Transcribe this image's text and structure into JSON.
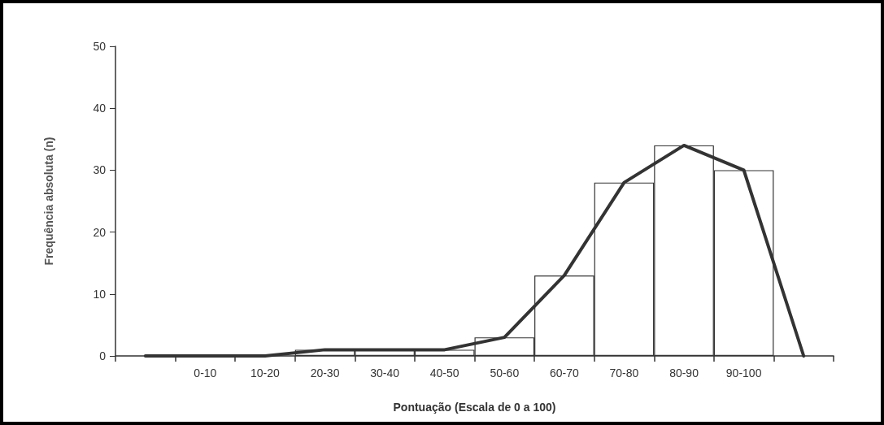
{
  "chart_data": {
    "type": "bar",
    "xlabel": "Pontuação (Escala de 0 a 100)",
    "ylabel": "Frequência absoluta (n)",
    "categories": [
      null,
      "0-10",
      "10-20",
      "20-30",
      "30-40",
      "40-50",
      "50-60",
      "60-70",
      "70-80",
      "80-90",
      "90-100",
      null
    ],
    "series": [
      {
        "color": "#ffffff",
        "values": [
          null,
          0,
          0,
          1,
          1,
          1,
          3,
          13,
          28,
          34,
          30,
          null
        ]
      },
      {
        "type": "line",
        "color": "#333333",
        "values": [
          0,
          0,
          0,
          1,
          1,
          1,
          3,
          13,
          28,
          34,
          30,
          0
        ]
      }
    ],
    "ylim": [
      0,
      50
    ],
    "yticks": [
      0,
      10,
      20,
      30,
      40,
      50
    ],
    "grid": false,
    "marker": "none",
    "line_style": "solid"
  }
}
